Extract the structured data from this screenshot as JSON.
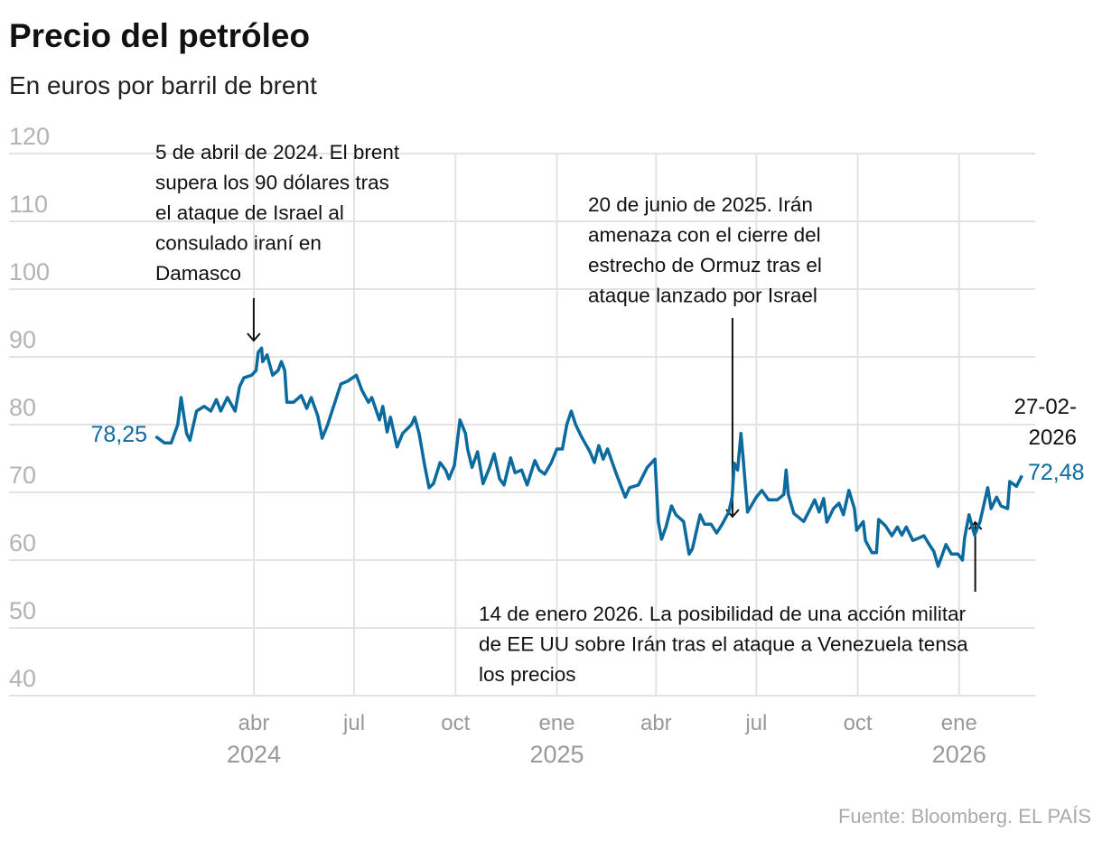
{
  "title": "Precio del petróleo",
  "subtitle": "En euros por barril de brent",
  "source": "Fuente: Bloomberg. EL PAÍS",
  "colors": {
    "line": "#0b6a9e",
    "grid": "#e3e3e3",
    "ticks": "#b3b3b3"
  },
  "chart_data": {
    "type": "line",
    "title": "Precio del petróleo",
    "subtitle": "En euros por barril de brent",
    "ylim": [
      40,
      120
    ],
    "yticks": [
      "120",
      "110",
      "100",
      "90",
      "80",
      "70",
      "60",
      "50",
      "40"
    ],
    "ytick_values": [
      120,
      110,
      100,
      90,
      80,
      70,
      60,
      50,
      40
    ],
    "xticks": [
      {
        "date": "2024-04-01",
        "label": "abr",
        "year": "2024"
      },
      {
        "date": "2024-07-01",
        "label": "jul",
        "year": ""
      },
      {
        "date": "2024-10-01",
        "label": "oct",
        "year": ""
      },
      {
        "date": "2025-01-01",
        "label": "ene",
        "year": "2025"
      },
      {
        "date": "2025-04-01",
        "label": "abr",
        "year": ""
      },
      {
        "date": "2025-07-01",
        "label": "jul",
        "year": ""
      },
      {
        "date": "2025-10-01",
        "label": "oct",
        "year": ""
      },
      {
        "date": "2026-01-01",
        "label": "ene",
        "year": "2026"
      }
    ],
    "grid": true,
    "start_label": "78,25",
    "end_label": "72,48",
    "end_date_label": [
      "27-02-",
      "2026"
    ],
    "annotations": [
      {
        "date": "2024-04-05",
        "lines": [
          "5 de abril de 2024. El brent",
          "supera los 90 dólares tras",
          "el ataque de Israel al",
          "consulado iraní en",
          "Damasco"
        ]
      },
      {
        "date": "2025-06-20",
        "lines": [
          "20 de junio de 2025. Irán",
          "amenaza con el cierre del",
          "estrecho de Ormuz tras el",
          "ataque lanzado por Israel"
        ]
      },
      {
        "date": "2026-01-14",
        "lines": [
          "14 de enero 2026. La posibilidad de una acción militar",
          "de EE UU sobre Irán tras el ataque a Venezuela tensa",
          "los precios"
        ]
      }
    ],
    "series": [
      {
        "x": [
          "2024-01-03",
          "2024-01-11",
          "2024-01-17",
          "2024-01-23",
          "2024-01-26",
          "2024-01-31",
          "2024-02-03",
          "2024-02-09",
          "2024-02-16",
          "2024-02-22",
          "2024-02-27",
          "2024-03-02",
          "2024-03-08",
          "2024-03-15",
          "2024-03-19",
          "2024-03-23",
          "2024-03-30",
          "2024-04-03",
          "2024-04-05",
          "2024-04-08",
          "2024-04-09",
          "2024-04-13",
          "2024-04-18",
          "2024-04-23",
          "2024-04-26",
          "2024-04-29",
          "2024-05-01",
          "2024-05-07",
          "2024-05-14",
          "2024-05-19",
          "2024-05-23",
          "2024-05-29",
          "2024-06-02",
          "2024-06-07",
          "2024-06-11",
          "2024-06-15",
          "2024-06-19",
          "2024-06-25",
          "2024-07-03",
          "2024-07-08",
          "2024-07-14",
          "2024-07-17",
          "2024-07-24",
          "2024-07-27",
          "2024-07-31",
          "2024-08-03",
          "2024-08-09",
          "2024-08-14",
          "2024-08-22",
          "2024-08-25",
          "2024-08-29",
          "2024-09-03",
          "2024-09-07",
          "2024-09-11",
          "2024-09-17",
          "2024-09-22",
          "2024-09-25",
          "2024-09-30",
          "2024-10-05",
          "2024-10-10",
          "2024-10-12",
          "2024-10-16",
          "2024-10-21",
          "2024-10-26",
          "2024-11-01",
          "2024-11-05",
          "2024-11-10",
          "2024-11-14",
          "2024-11-20",
          "2024-11-24",
          "2024-11-30",
          "2024-12-05",
          "2024-12-12",
          "2024-12-16",
          "2024-12-21",
          "2024-12-27",
          "2025-01-01",
          "2025-01-06",
          "2025-01-10",
          "2025-01-14",
          "2025-01-18",
          "2025-01-23",
          "2025-01-31",
          "2025-02-04",
          "2025-02-08",
          "2025-02-12",
          "2025-02-16",
          "2025-02-24",
          "2025-03-04",
          "2025-03-08",
          "2025-03-16",
          "2025-03-24",
          "2025-03-31",
          "2025-04-03",
          "2025-04-06",
          "2025-04-10",
          "2025-04-15",
          "2025-04-19",
          "2025-04-26",
          "2025-05-01",
          "2025-05-04",
          "2025-05-11",
          "2025-05-15",
          "2025-05-21",
          "2025-05-26",
          "2025-05-31",
          "2025-06-06",
          "2025-06-09",
          "2025-06-11",
          "2025-06-14",
          "2025-06-17",
          "2025-06-19",
          "2025-06-23",
          "2025-07-01",
          "2025-07-06",
          "2025-07-12",
          "2025-07-20",
          "2025-07-26",
          "2025-07-28",
          "2025-07-30",
          "2025-08-04",
          "2025-08-13",
          "2025-08-19",
          "2025-08-23",
          "2025-08-27",
          "2025-08-31",
          "2025-09-03",
          "2025-09-09",
          "2025-09-14",
          "2025-09-18",
          "2025-09-23",
          "2025-09-28",
          "2025-09-30",
          "2025-10-06",
          "2025-10-08",
          "2025-10-14",
          "2025-10-18",
          "2025-10-20",
          "2025-10-26",
          "2025-11-01",
          "2025-11-06",
          "2025-11-10",
          "2025-11-14",
          "2025-11-20",
          "2025-11-26",
          "2025-11-30",
          "2025-12-05",
          "2025-12-09",
          "2025-12-13",
          "2025-12-20",
          "2025-12-25",
          "2025-12-31",
          "2026-01-04",
          "2026-01-06",
          "2026-01-10",
          "2026-01-15",
          "2026-01-20",
          "2026-01-27",
          "2026-01-30",
          "2026-02-04",
          "2026-02-08",
          "2026-02-14",
          "2026-02-16",
          "2026-02-22",
          "2026-02-27"
        ],
        "y": [
          78.25,
          77.3,
          77.3,
          80.0,
          84.0,
          78.7,
          77.7,
          82.0,
          82.7,
          82.0,
          83.7,
          82.0,
          84.0,
          82.0,
          85.6,
          86.9,
          87.3,
          88.0,
          90.7,
          91.3,
          89.3,
          90.3,
          87.3,
          88.0,
          89.3,
          88.0,
          83.3,
          83.3,
          84.3,
          82.4,
          84.0,
          81.3,
          78.0,
          80.0,
          82.0,
          84.0,
          86.0,
          86.4,
          87.3,
          85.1,
          83.3,
          84.0,
          80.7,
          82.7,
          78.9,
          81.1,
          76.7,
          78.7,
          80.0,
          81.1,
          78.7,
          74.0,
          70.7,
          71.3,
          74.4,
          73.3,
          72.0,
          74.0,
          80.7,
          78.7,
          76.4,
          73.7,
          76.0,
          71.3,
          73.7,
          75.7,
          72.0,
          71.1,
          75.1,
          72.9,
          73.3,
          71.1,
          74.7,
          73.3,
          72.7,
          74.4,
          76.4,
          76.4,
          80.0,
          82.0,
          80.0,
          78.3,
          76.0,
          74.4,
          76.9,
          74.9,
          76.4,
          72.7,
          69.3,
          70.7,
          71.1,
          73.7,
          74.9,
          65.7,
          63.1,
          64.9,
          68.0,
          66.7,
          65.7,
          60.9,
          61.7,
          66.7,
          65.3,
          65.3,
          64.0,
          65.3,
          67.1,
          69.3,
          74.3,
          73.3,
          78.7,
          75.1,
          67.1,
          69.3,
          70.3,
          68.9,
          68.9,
          69.7,
          73.3,
          69.7,
          66.9,
          65.7,
          67.6,
          68.9,
          67.1,
          69.1,
          65.6,
          67.6,
          68.4,
          66.7,
          70.3,
          67.6,
          64.4,
          65.7,
          62.9,
          61.1,
          61.1,
          66.0,
          65.1,
          63.6,
          64.9,
          63.7,
          64.9,
          62.9,
          63.3,
          63.6,
          62.3,
          61.3,
          59.1,
          62.3,
          60.9,
          60.9,
          60.0,
          63.3,
          66.7,
          63.7,
          65.7,
          70.7,
          67.6,
          69.3,
          68.0,
          67.6,
          71.6,
          70.9,
          72.48
        ]
      }
    ]
  }
}
